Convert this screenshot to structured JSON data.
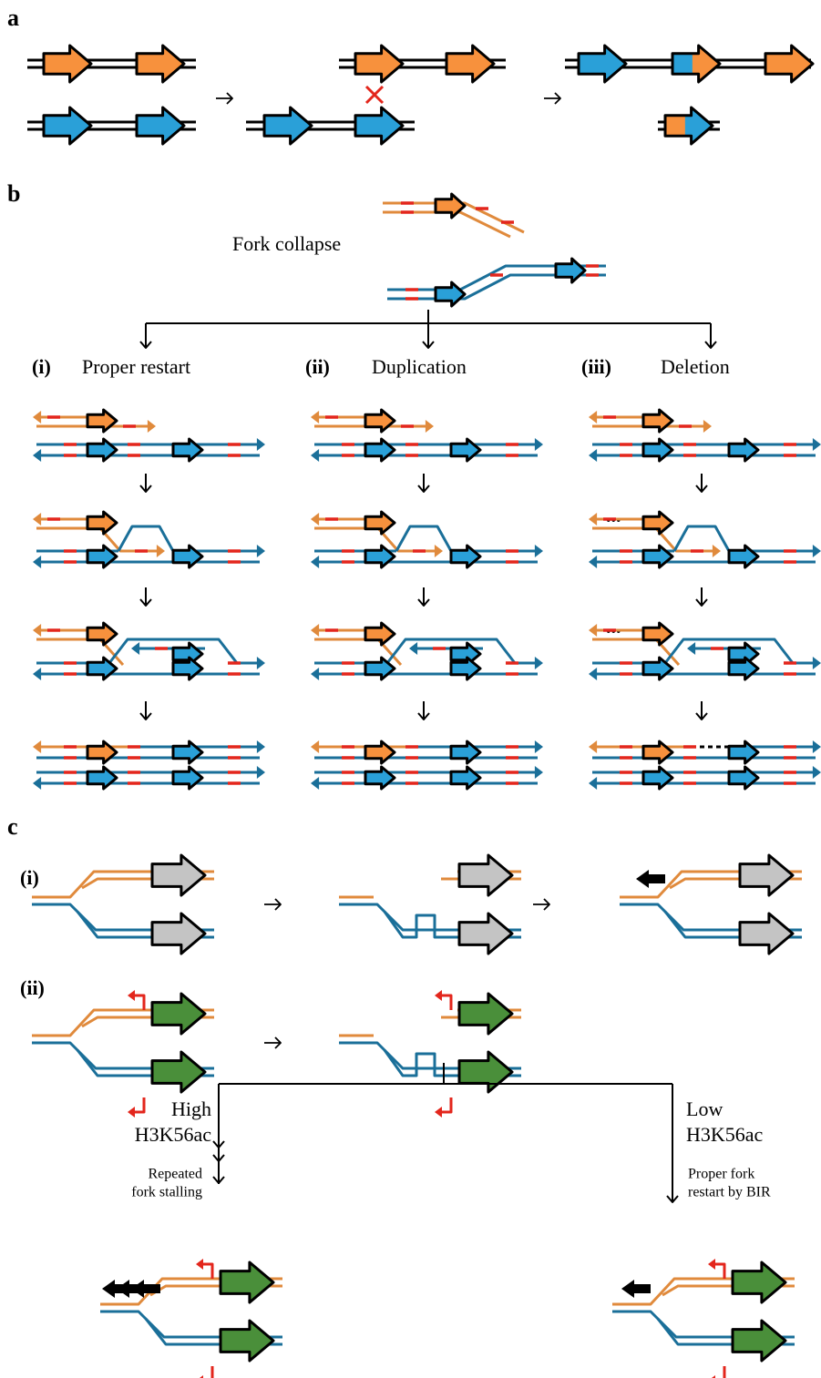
{
  "panels": {
    "a": "a",
    "b": "b",
    "c": "c"
  },
  "b": {
    "fork_collapse": "Fork collapse",
    "branches": [
      {
        "label": "(i)",
        "title": "Proper restart"
      },
      {
        "label": "(ii)",
        "title": "Duplication"
      },
      {
        "label": "(iii)",
        "title": "Deletion"
      }
    ],
    "ellipsis": "..."
  },
  "c": {
    "rows": [
      "(i)",
      "(ii)"
    ],
    "high": {
      "lines": [
        "High",
        "H3K56ac"
      ],
      "note": [
        "Repeated",
        "fork stalling"
      ]
    },
    "low": {
      "lines": [
        "Low",
        "H3K56ac"
      ],
      "note": [
        "Proper fork",
        "restart by BIR"
      ]
    }
  }
}
